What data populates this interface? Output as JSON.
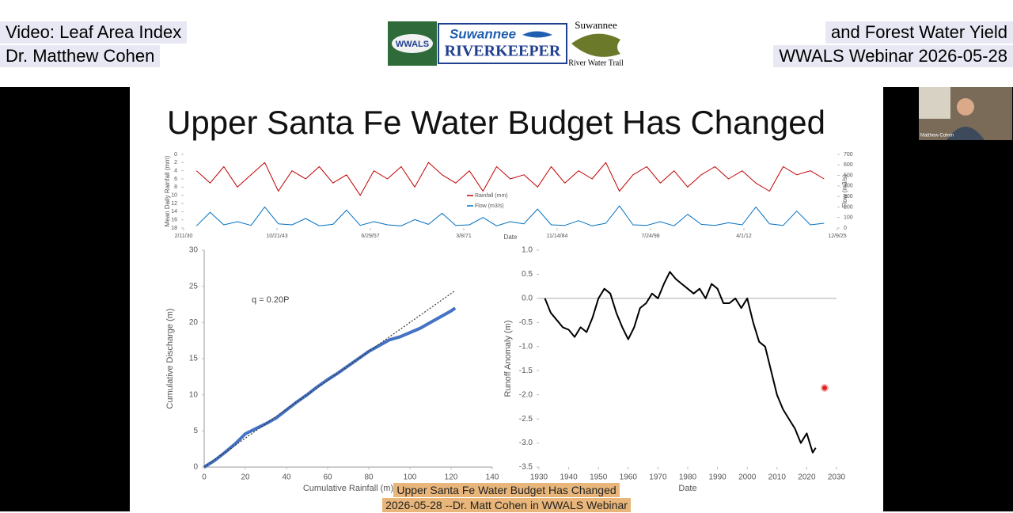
{
  "header": {
    "left": [
      "Video: Leaf Area Index",
      "Dr. Matthew Cohen"
    ],
    "right": [
      "and Forest Water Yield",
      "WWALS Webinar 2026-05-28"
    ]
  },
  "logo": {
    "badge": "WWALS",
    "brand": "Suwannee",
    "name": "RIVERKEEPER",
    "trail_top": "Suwannee",
    "trail_bottom": "River Water Trail"
  },
  "slide": {
    "title": "Upper Santa Fe Water Budget Has Changed"
  },
  "participant": {
    "name": "Matthew Cohen"
  },
  "caption": [
    "Upper Santa Fe Water Budget Has Changed",
    "2026-05-28 --Dr. Matt Cohen in WWALS Webinar"
  ],
  "chart_data": [
    {
      "type": "line",
      "xlabel": "Date",
      "ylabel": "Mean Daily Rainfall (mm)",
      "y2label": "Flow (m3/s)",
      "x": [
        1932,
        1934,
        1936,
        1938,
        1940,
        1942,
        1944,
        1946,
        1948,
        1950,
        1952,
        1954,
        1956,
        1958,
        1960,
        1962,
        1964,
        1966,
        1968,
        1970,
        1972,
        1974,
        1976,
        1978,
        1980,
        1982,
        1984,
        1986,
        1988,
        1990,
        1992,
        1994,
        1996,
        1998,
        2000,
        2002,
        2004,
        2006,
        2008,
        2010,
        2012,
        2014,
        2016,
        2018,
        2020,
        2022,
        2024
      ],
      "xlim": [
        1930.11,
        2025.94
      ],
      "xticks": [
        {
          "value": 1930.11,
          "label": "2/11/30"
        },
        {
          "value": 1943.8,
          "label": "10/21/43"
        },
        {
          "value": 1957.49,
          "label": "6/29/57"
        },
        {
          "value": 1971.18,
          "label": "3/8/71"
        },
        {
          "value": 1984.87,
          "label": "11/14/84"
        },
        {
          "value": 1998.56,
          "label": "7/24/98"
        },
        {
          "value": 2012.25,
          "label": "4/1/12"
        },
        {
          "value": 2025.94,
          "label": "12/9/25"
        }
      ],
      "ylim": [
        18,
        0
      ],
      "yticks": [
        0,
        2,
        4,
        6,
        8,
        10,
        12,
        14,
        16,
        18
      ],
      "y2lim": [
        0,
        700
      ],
      "y2ticks": [
        0,
        100,
        200,
        300,
        400,
        500,
        600,
        700
      ],
      "legend": "center",
      "series": [
        {
          "name": "Rainfall (mm)",
          "color": "#c00000",
          "values": [
            4,
            7,
            3,
            8,
            5,
            2,
            9,
            4,
            6,
            3,
            7,
            5,
            10,
            4,
            6,
            3,
            8,
            2,
            5,
            7,
            4,
            9,
            3,
            6,
            5,
            8,
            3,
            7,
            4,
            6,
            2,
            9,
            5,
            3,
            7,
            4,
            8,
            5,
            3,
            6,
            4,
            7,
            9,
            3,
            5,
            4,
            6
          ]
        },
        {
          "name": "Flow (m3/s)",
          "color": "#0070c0",
          "axis": "y2",
          "values": [
            20,
            150,
            30,
            60,
            25,
            200,
            40,
            30,
            90,
            20,
            35,
            170,
            25,
            60,
            30,
            20,
            80,
            35,
            140,
            25,
            30,
            100,
            20,
            60,
            40,
            180,
            30,
            25,
            70,
            20,
            45,
            210,
            30,
            25,
            60,
            20,
            130,
            35,
            25,
            50,
            30,
            200,
            40,
            25,
            160,
            30,
            45
          ]
        }
      ]
    },
    {
      "type": "line",
      "xlabel": "Cumulative Rainfall (m)",
      "ylabel": "Cumulative Discharge (m)",
      "annotation": "q = 0.20P",
      "xlim": [
        0,
        140
      ],
      "xticks": [
        0,
        20,
        40,
        60,
        80,
        100,
        120,
        140
      ],
      "ylim": [
        0,
        30
      ],
      "yticks": [
        0,
        5,
        10,
        15,
        20,
        25,
        30
      ],
      "series": [
        {
          "color": "#4472c4",
          "width": 4,
          "x": [
            0,
            5,
            10,
            15,
            20,
            25,
            30,
            35,
            40,
            45,
            50,
            55,
            60,
            65,
            70,
            75,
            80,
            85,
            90,
            95,
            100,
            105,
            110,
            115,
            120,
            122
          ],
          "values": [
            0,
            0.9,
            2,
            3.2,
            4.6,
            5.3,
            6,
            6.8,
            7.9,
            9,
            10,
            11.1,
            12.1,
            13,
            14,
            15,
            16,
            16.8,
            17.6,
            18,
            18.6,
            19.2,
            20,
            20.8,
            21.6,
            22
          ]
        },
        {
          "color": "#333333",
          "width": 1.2,
          "dashed": true,
          "x": [
            0,
            122
          ],
          "values": [
            0,
            24.4
          ]
        }
      ]
    },
    {
      "type": "line",
      "xlabel": "Date",
      "ylabel": "Runoff Anomaly (m)",
      "zero_line": true,
      "xlim": [
        1930,
        2030
      ],
      "xticks": [
        1930,
        1940,
        1950,
        1960,
        1970,
        1980,
        1990,
        2000,
        2010,
        2020,
        2030
      ],
      "ylim": [
        -3.5,
        1
      ],
      "yticks": [
        {
          "value": 1,
          "label": "1.0"
        },
        0.5,
        {
          "value": 0,
          "label": "0.0"
        },
        -0.5,
        {
          "value": -1,
          "label": "-1.0"
        },
        -1.5,
        {
          "value": -2,
          "label": "-2.0"
        },
        -2.5,
        {
          "value": -3,
          "label": "-3.0"
        },
        -3.5
      ],
      "x": [
        1932,
        1934,
        1936,
        1938,
        1940,
        1942,
        1944,
        1946,
        1948,
        1950,
        1952,
        1954,
        1956,
        1958,
        1960,
        1962,
        1964,
        1966,
        1968,
        1970,
        1972,
        1974,
        1976,
        1978,
        1980,
        1982,
        1984,
        1986,
        1988,
        1990,
        1992,
        1994,
        1996,
        1998,
        2000,
        2002,
        2004,
        2006,
        2008,
        2010,
        2012,
        2014,
        2016,
        2018,
        2020,
        2022,
        2023
      ],
      "series": [
        {
          "color": "#000000",
          "width": 2,
          "values": [
            0,
            -0.3,
            -0.45,
            -0.6,
            -0.65,
            -0.8,
            -0.6,
            -0.7,
            -0.4,
            0,
            0.2,
            0.1,
            -0.3,
            -0.6,
            -0.85,
            -0.6,
            -0.2,
            -0.1,
            0.1,
            0,
            0.3,
            0.55,
            0.4,
            0.3,
            0.2,
            0.1,
            0.2,
            0,
            0.3,
            0.2,
            -0.1,
            -0.1,
            0,
            -0.2,
            0,
            -0.5,
            -0.9,
            -1,
            -1.5,
            -2,
            -2.3,
            -2.5,
            -2.7,
            -3,
            -2.8,
            -3.2,
            -3.1
          ]
        }
      ]
    }
  ]
}
